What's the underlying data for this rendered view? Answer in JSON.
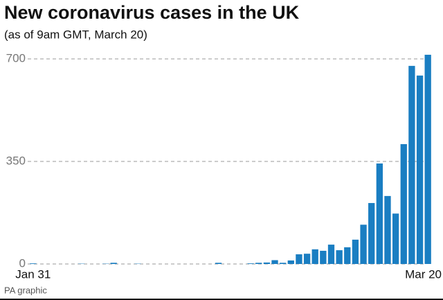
{
  "chart_data": {
    "type": "bar",
    "title": "New coronavirus cases in the UK",
    "subtitle": "(as of 9am GMT, March 20)",
    "source": "PA graphic",
    "categories": [
      "Jan 31",
      null,
      null,
      null,
      null,
      null,
      null,
      null,
      null,
      null,
      null,
      null,
      null,
      null,
      null,
      null,
      null,
      null,
      null,
      null,
      null,
      null,
      null,
      null,
      null,
      null,
      null,
      null,
      null,
      null,
      null,
      null,
      null,
      null,
      null,
      null,
      null,
      null,
      null,
      null,
      null,
      null,
      null,
      null,
      null,
      null,
      null,
      null,
      null,
      "Mar 20"
    ],
    "values": [
      2,
      0,
      0,
      0,
      0,
      0,
      1,
      0,
      0,
      1,
      4,
      0,
      0,
      1,
      0,
      0,
      0,
      0,
      0,
      0,
      0,
      0,
      0,
      4,
      0,
      0,
      0,
      2,
      4,
      5,
      13,
      4,
      12,
      33,
      35,
      50,
      45,
      66,
      47,
      57,
      83,
      134,
      208,
      343,
      232,
      172,
      409,
      676,
      643,
      714
    ],
    "color": "#1a7ec2",
    "ylim": [
      0,
      720
    ],
    "yticks": [
      0,
      350,
      700
    ],
    "grid": true
  }
}
